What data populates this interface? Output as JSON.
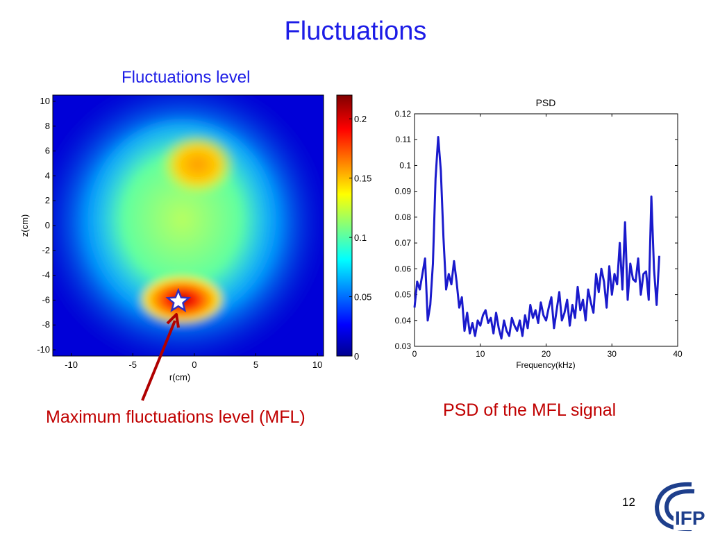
{
  "slide": {
    "title": "Fluctuations",
    "page_number": "12",
    "logo_text": "IFP"
  },
  "captions": {
    "heatmap_title": "Fluctuations level",
    "mfl": "Maximum fluctuations level (MFL)",
    "psd": "PSD of the MFL signal"
  },
  "colors": {
    "title": "#1c1ce6",
    "caption": "#c00000",
    "arrow": "#b00000",
    "psd_line": "#1a1acc"
  },
  "chart_data": [
    {
      "type": "heatmap",
      "title": "Fluctuations level",
      "xlabel": "r(cm)",
      "ylabel": "z(cm)",
      "xlim": [
        -11.5,
        10.5
      ],
      "ylim": [
        -10.5,
        10.5
      ],
      "xticks": [
        "-10",
        "-5",
        "0",
        "5",
        "10"
      ],
      "yticks": [
        "10",
        "8",
        "6",
        "4",
        "2",
        "0",
        "-2",
        "-4",
        "-6",
        "-8",
        "-10"
      ],
      "colorbar": {
        "min": 0,
        "max": 0.22,
        "ticks": [
          "0.2",
          "0.15",
          "0.1",
          "0.05",
          "0"
        ]
      },
      "background_level": 0.0,
      "features": [
        {
          "label": "central plasma",
          "r": -0.5,
          "z": -0.5,
          "width": 8.8,
          "height": 8.8,
          "level": 0.14
        },
        {
          "label": "upper hot spot",
          "r": 1.0,
          "z": 5.0,
          "width": 2.8,
          "height": 2.2,
          "level": 0.16
        },
        {
          "label": "MFL hot spot",
          "r": -1.0,
          "z": -6.0,
          "width": 2.6,
          "height": 1.2,
          "level": 0.22
        }
      ],
      "marker": {
        "symbol": "star",
        "r": -1.3,
        "z": -6.1,
        "label": "Maximum fluctuations level (MFL)"
      }
    },
    {
      "type": "line",
      "title": "PSD",
      "xlabel": "Frequency(kHz)",
      "ylabel": "",
      "xlim": [
        0,
        40
      ],
      "ylim": [
        0.03,
        0.12
      ],
      "xticks": [
        "0",
        "10",
        "20",
        "30",
        "40"
      ],
      "yticks": [
        "0.12",
        "0.11",
        "0.1",
        "0.09",
        "0.08",
        "0.07",
        "0.06",
        "0.05",
        "0.04",
        "0.03"
      ],
      "series": [
        {
          "x": [
            0.0,
            0.4,
            0.8,
            1.2,
            1.6,
            2.0,
            2.4,
            2.8,
            3.2,
            3.6,
            4.0,
            4.4,
            4.8,
            5.2,
            5.6,
            6.0,
            6.4,
            6.8,
            7.2,
            7.6,
            8.0,
            8.4,
            8.8,
            9.2,
            9.6,
            10.0,
            10.4,
            10.8,
            11.2,
            11.6,
            12.0,
            12.4,
            12.8,
            13.2,
            13.6,
            14.0,
            14.4,
            14.8,
            15.2,
            15.6,
            16.0,
            16.4,
            16.8,
            17.2,
            17.6,
            18.0,
            18.4,
            18.8,
            19.2,
            19.6,
            20.0,
            20.4,
            20.8,
            21.2,
            21.6,
            22.0,
            22.4,
            22.8,
            23.2,
            23.6,
            24.0,
            24.4,
            24.8,
            25.2,
            25.6,
            26.0,
            26.4,
            26.8,
            27.2,
            27.6,
            28.0,
            28.4,
            28.8,
            29.2,
            29.6,
            30.0,
            30.4,
            30.8,
            31.2,
            31.6,
            32.0,
            32.4,
            32.8,
            33.2,
            33.6,
            34.0,
            34.4,
            34.8,
            35.2,
            35.6,
            36.0,
            36.4,
            36.8,
            37.2
          ],
          "y": [
            0.045,
            0.055,
            0.052,
            0.058,
            0.064,
            0.04,
            0.046,
            0.062,
            0.095,
            0.111,
            0.098,
            0.072,
            0.052,
            0.058,
            0.054,
            0.063,
            0.055,
            0.045,
            0.049,
            0.036,
            0.043,
            0.035,
            0.039,
            0.034,
            0.04,
            0.038,
            0.042,
            0.044,
            0.039,
            0.041,
            0.035,
            0.043,
            0.037,
            0.033,
            0.04,
            0.036,
            0.034,
            0.041,
            0.038,
            0.036,
            0.04,
            0.034,
            0.042,
            0.037,
            0.046,
            0.041,
            0.044,
            0.039,
            0.047,
            0.042,
            0.04,
            0.045,
            0.049,
            0.037,
            0.044,
            0.051,
            0.04,
            0.043,
            0.048,
            0.038,
            0.046,
            0.041,
            0.053,
            0.044,
            0.048,
            0.04,
            0.052,
            0.047,
            0.043,
            0.058,
            0.051,
            0.06,
            0.055,
            0.045,
            0.061,
            0.05,
            0.058,
            0.054,
            0.07,
            0.052,
            0.078,
            0.048,
            0.062,
            0.056,
            0.055,
            0.064,
            0.05,
            0.058,
            0.059,
            0.048,
            0.088,
            0.06,
            0.046,
            0.065
          ]
        }
      ],
      "grid": false
    }
  ]
}
